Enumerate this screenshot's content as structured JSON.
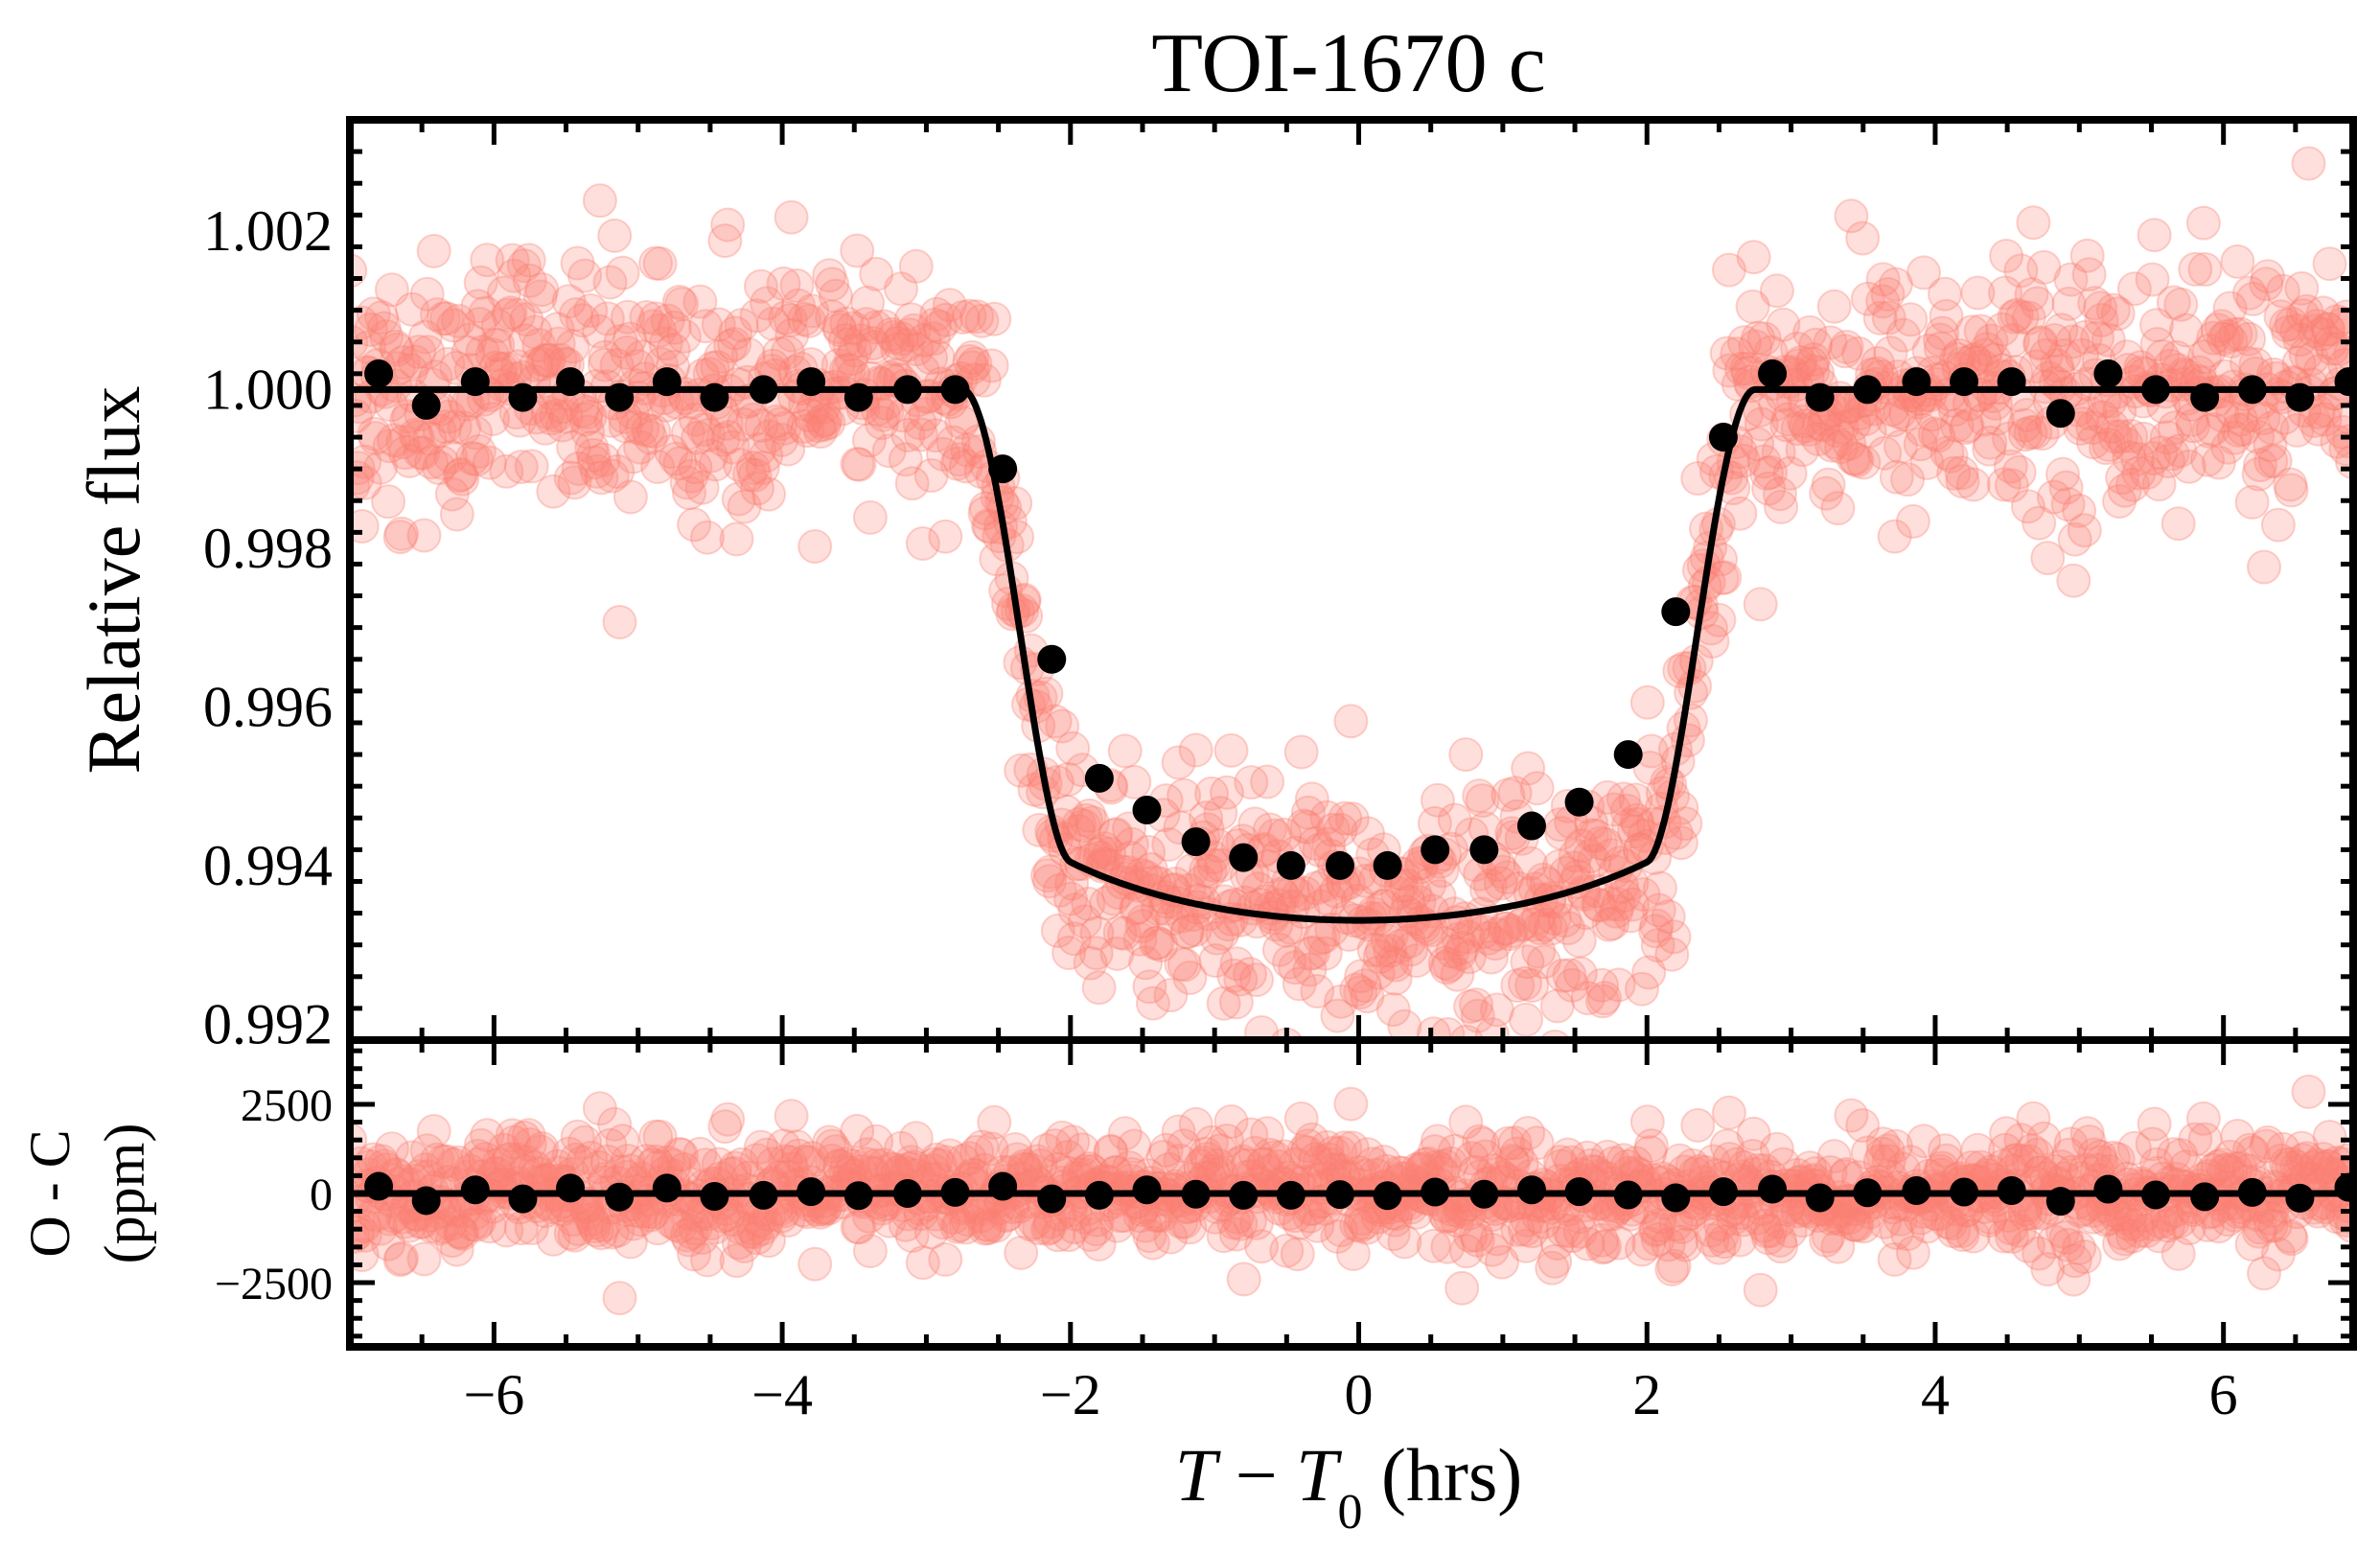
{
  "figure": {
    "title": "TOI-1670 c"
  },
  "chart_data": [
    {
      "type": "scatter",
      "panel": "top",
      "title": "TOI-1670 c",
      "xlabel": "",
      "ylabel": "Relative flux",
      "xlim": [
        -7.0,
        6.9
      ],
      "ylim": [
        0.9918,
        1.0034
      ],
      "x_ticks": [
        -6,
        -4,
        -2,
        0,
        2,
        4,
        6
      ],
      "y_ticks": [
        0.992,
        0.994,
        0.996,
        0.998,
        1.0,
        1.002
      ],
      "y_tick_labels": [
        "0.992",
        "0.994",
        "0.996",
        "0.998",
        "1.000",
        "1.002"
      ],
      "raw_color": "#fa8072",
      "binned_color": "#000000",
      "model_color": "#000000",
      "model": {
        "depth": 0.006,
        "transit_half_width_hrs": 2.75,
        "ingress_hrs": 0.75,
        "limb_darkening_u1": 0.35
      },
      "binned": {
        "x": [
          -6.8,
          -6.47,
          -6.13,
          -5.8,
          -5.47,
          -5.13,
          -4.8,
          -4.47,
          -4.13,
          -3.8,
          -3.47,
          -3.13,
          -2.8,
          -2.47,
          -2.13,
          -1.8,
          -1.47,
          -1.13,
          -0.8,
          -0.47,
          -0.13,
          0.2,
          0.53,
          0.87,
          1.2,
          1.53,
          1.87,
          2.2,
          2.53,
          2.87,
          3.2,
          3.53,
          3.87,
          4.2,
          4.53,
          4.87,
          5.2,
          5.53,
          5.87,
          6.2,
          6.53,
          6.87
        ],
        "y": [
          1.0002,
          0.9998,
          1.0001,
          0.9999,
          1.0001,
          0.9999,
          1.0001,
          0.9999,
          1.0,
          1.0001,
          0.9999,
          1.0,
          1.0,
          0.999,
          0.9966,
          0.9951,
          0.9947,
          0.9943,
          0.9941,
          0.994,
          0.994,
          0.994,
          0.9942,
          0.9942,
          0.9945,
          0.9948,
          0.9954,
          0.9972,
          0.9994,
          1.0002,
          0.9999,
          1.0,
          1.0001,
          1.0001,
          1.0001,
          0.9997,
          1.0002,
          1.0,
          0.9999,
          1.0,
          0.9999,
          1.0001
        ]
      },
      "raw_scatter_ppm": 800
    },
    {
      "type": "scatter",
      "panel": "bottom",
      "xlabel": "T − T0 (hrs)",
      "ylabel": "O - C (ppm)",
      "xlim": [
        -7.0,
        6.9
      ],
      "ylim": [
        -4300,
        4300
      ],
      "x_ticks": [
        -6,
        -4,
        -2,
        0,
        2,
        4,
        6
      ],
      "x_tick_labels": [
        "−6",
        "−4",
        "−2",
        "0",
        "2",
        "4",
        "6"
      ],
      "y_ticks": [
        -2500,
        0,
        2500
      ],
      "y_tick_labels": [
        "−2500",
        "0",
        "2500"
      ],
      "raw_color": "#fa8072",
      "binned": {
        "x": [
          -6.8,
          -6.47,
          -6.13,
          -5.8,
          -5.47,
          -5.13,
          -4.8,
          -4.47,
          -4.13,
          -3.8,
          -3.47,
          -3.13,
          -2.8,
          -2.47,
          -2.13,
          -1.8,
          -1.47,
          -1.13,
          -0.8,
          -0.47,
          -0.13,
          0.2,
          0.53,
          0.87,
          1.2,
          1.53,
          1.87,
          2.2,
          2.53,
          2.87,
          3.2,
          3.53,
          3.87,
          4.2,
          4.53,
          4.87,
          5.2,
          5.53,
          5.87,
          6.2,
          6.53,
          6.87
        ],
        "y": [
          200,
          -200,
          100,
          -150,
          150,
          -100,
          150,
          -80,
          -50,
          50,
          -60,
          0,
          30,
          200,
          -150,
          -50,
          100,
          -20,
          -50,
          -50,
          -30,
          -60,
          40,
          -20,
          100,
          50,
          -40,
          -120,
          50,
          120,
          -120,
          20,
          80,
          40,
          80,
          -220,
          120,
          -40,
          -90,
          30,
          -130,
          170
        ]
      },
      "raw_scatter_ppm": 800
    }
  ]
}
